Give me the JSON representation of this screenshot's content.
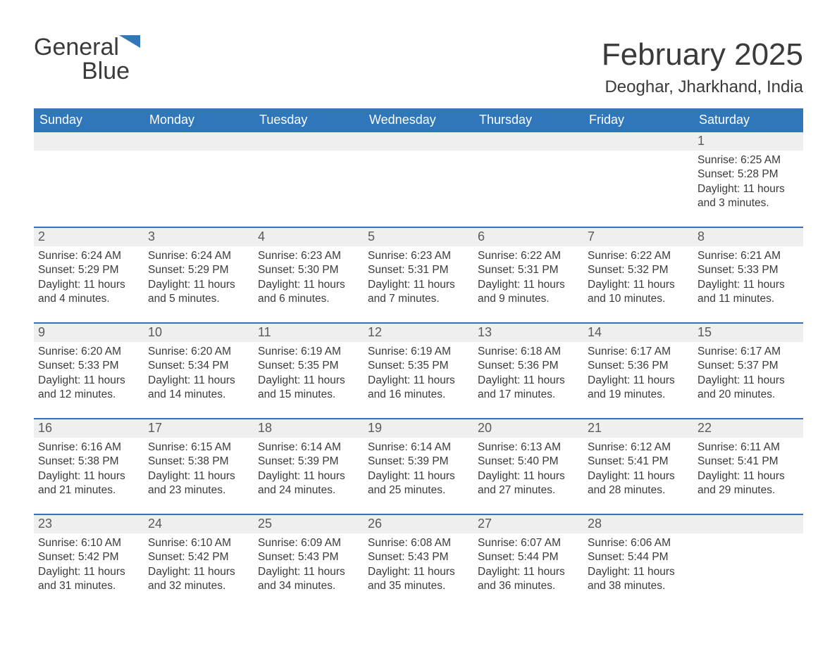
{
  "logo": {
    "word1": "General",
    "word2": "Blue"
  },
  "title": "February 2025",
  "location": "Deoghar, Jharkhand, India",
  "colors": {
    "brand_blue": "#2f76bb",
    "header_text": "#ffffff",
    "day_num_bg": "#efefef",
    "body_text": "#3a3a3a"
  },
  "weekdays": [
    "Sunday",
    "Monday",
    "Tuesday",
    "Wednesday",
    "Thursday",
    "Friday",
    "Saturday"
  ],
  "weeks": [
    [
      null,
      null,
      null,
      null,
      null,
      null,
      {
        "n": "1",
        "sunrise": "Sunrise: 6:25 AM",
        "sunset": "Sunset: 5:28 PM",
        "daylight1": "Daylight: 11 hours",
        "daylight2": "and 3 minutes."
      }
    ],
    [
      {
        "n": "2",
        "sunrise": "Sunrise: 6:24 AM",
        "sunset": "Sunset: 5:29 PM",
        "daylight1": "Daylight: 11 hours",
        "daylight2": "and 4 minutes."
      },
      {
        "n": "3",
        "sunrise": "Sunrise: 6:24 AM",
        "sunset": "Sunset: 5:29 PM",
        "daylight1": "Daylight: 11 hours",
        "daylight2": "and 5 minutes."
      },
      {
        "n": "4",
        "sunrise": "Sunrise: 6:23 AM",
        "sunset": "Sunset: 5:30 PM",
        "daylight1": "Daylight: 11 hours",
        "daylight2": "and 6 minutes."
      },
      {
        "n": "5",
        "sunrise": "Sunrise: 6:23 AM",
        "sunset": "Sunset: 5:31 PM",
        "daylight1": "Daylight: 11 hours",
        "daylight2": "and 7 minutes."
      },
      {
        "n": "6",
        "sunrise": "Sunrise: 6:22 AM",
        "sunset": "Sunset: 5:31 PM",
        "daylight1": "Daylight: 11 hours",
        "daylight2": "and 9 minutes."
      },
      {
        "n": "7",
        "sunrise": "Sunrise: 6:22 AM",
        "sunset": "Sunset: 5:32 PM",
        "daylight1": "Daylight: 11 hours",
        "daylight2": "and 10 minutes."
      },
      {
        "n": "8",
        "sunrise": "Sunrise: 6:21 AM",
        "sunset": "Sunset: 5:33 PM",
        "daylight1": "Daylight: 11 hours",
        "daylight2": "and 11 minutes."
      }
    ],
    [
      {
        "n": "9",
        "sunrise": "Sunrise: 6:20 AM",
        "sunset": "Sunset: 5:33 PM",
        "daylight1": "Daylight: 11 hours",
        "daylight2": "and 12 minutes."
      },
      {
        "n": "10",
        "sunrise": "Sunrise: 6:20 AM",
        "sunset": "Sunset: 5:34 PM",
        "daylight1": "Daylight: 11 hours",
        "daylight2": "and 14 minutes."
      },
      {
        "n": "11",
        "sunrise": "Sunrise: 6:19 AM",
        "sunset": "Sunset: 5:35 PM",
        "daylight1": "Daylight: 11 hours",
        "daylight2": "and 15 minutes."
      },
      {
        "n": "12",
        "sunrise": "Sunrise: 6:19 AM",
        "sunset": "Sunset: 5:35 PM",
        "daylight1": "Daylight: 11 hours",
        "daylight2": "and 16 minutes."
      },
      {
        "n": "13",
        "sunrise": "Sunrise: 6:18 AM",
        "sunset": "Sunset: 5:36 PM",
        "daylight1": "Daylight: 11 hours",
        "daylight2": "and 17 minutes."
      },
      {
        "n": "14",
        "sunrise": "Sunrise: 6:17 AM",
        "sunset": "Sunset: 5:36 PM",
        "daylight1": "Daylight: 11 hours",
        "daylight2": "and 19 minutes."
      },
      {
        "n": "15",
        "sunrise": "Sunrise: 6:17 AM",
        "sunset": "Sunset: 5:37 PM",
        "daylight1": "Daylight: 11 hours",
        "daylight2": "and 20 minutes."
      }
    ],
    [
      {
        "n": "16",
        "sunrise": "Sunrise: 6:16 AM",
        "sunset": "Sunset: 5:38 PM",
        "daylight1": "Daylight: 11 hours",
        "daylight2": "and 21 minutes."
      },
      {
        "n": "17",
        "sunrise": "Sunrise: 6:15 AM",
        "sunset": "Sunset: 5:38 PM",
        "daylight1": "Daylight: 11 hours",
        "daylight2": "and 23 minutes."
      },
      {
        "n": "18",
        "sunrise": "Sunrise: 6:14 AM",
        "sunset": "Sunset: 5:39 PM",
        "daylight1": "Daylight: 11 hours",
        "daylight2": "and 24 minutes."
      },
      {
        "n": "19",
        "sunrise": "Sunrise: 6:14 AM",
        "sunset": "Sunset: 5:39 PM",
        "daylight1": "Daylight: 11 hours",
        "daylight2": "and 25 minutes."
      },
      {
        "n": "20",
        "sunrise": "Sunrise: 6:13 AM",
        "sunset": "Sunset: 5:40 PM",
        "daylight1": "Daylight: 11 hours",
        "daylight2": "and 27 minutes."
      },
      {
        "n": "21",
        "sunrise": "Sunrise: 6:12 AM",
        "sunset": "Sunset: 5:41 PM",
        "daylight1": "Daylight: 11 hours",
        "daylight2": "and 28 minutes."
      },
      {
        "n": "22",
        "sunrise": "Sunrise: 6:11 AM",
        "sunset": "Sunset: 5:41 PM",
        "daylight1": "Daylight: 11 hours",
        "daylight2": "and 29 minutes."
      }
    ],
    [
      {
        "n": "23",
        "sunrise": "Sunrise: 6:10 AM",
        "sunset": "Sunset: 5:42 PM",
        "daylight1": "Daylight: 11 hours",
        "daylight2": "and 31 minutes."
      },
      {
        "n": "24",
        "sunrise": "Sunrise: 6:10 AM",
        "sunset": "Sunset: 5:42 PM",
        "daylight1": "Daylight: 11 hours",
        "daylight2": "and 32 minutes."
      },
      {
        "n": "25",
        "sunrise": "Sunrise: 6:09 AM",
        "sunset": "Sunset: 5:43 PM",
        "daylight1": "Daylight: 11 hours",
        "daylight2": "and 34 minutes."
      },
      {
        "n": "26",
        "sunrise": "Sunrise: 6:08 AM",
        "sunset": "Sunset: 5:43 PM",
        "daylight1": "Daylight: 11 hours",
        "daylight2": "and 35 minutes."
      },
      {
        "n": "27",
        "sunrise": "Sunrise: 6:07 AM",
        "sunset": "Sunset: 5:44 PM",
        "daylight1": "Daylight: 11 hours",
        "daylight2": "and 36 minutes."
      },
      {
        "n": "28",
        "sunrise": "Sunrise: 6:06 AM",
        "sunset": "Sunset: 5:44 PM",
        "daylight1": "Daylight: 11 hours",
        "daylight2": "and 38 minutes."
      },
      null
    ]
  ]
}
